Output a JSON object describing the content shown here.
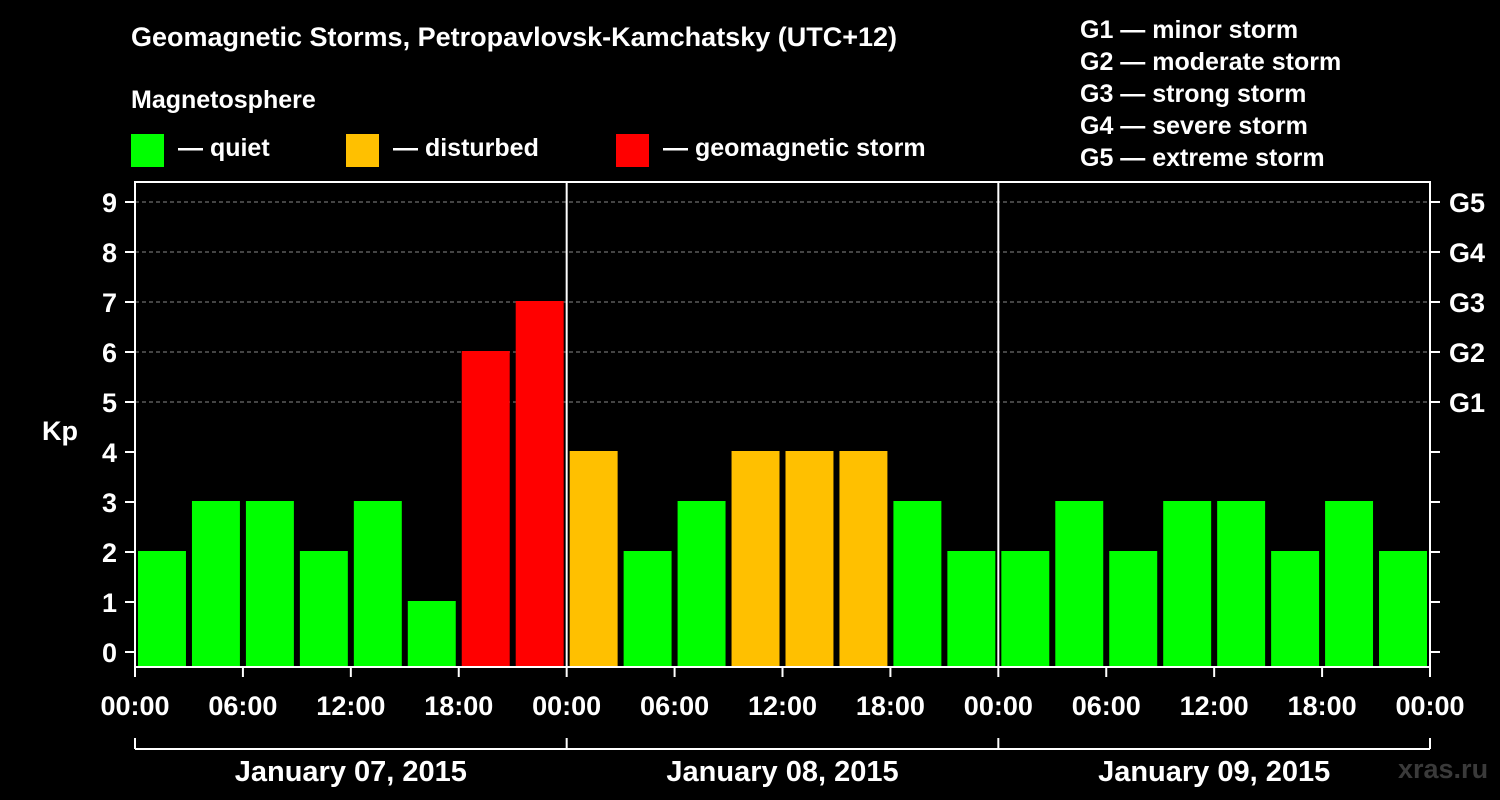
{
  "header": {
    "title": "Geomagnetic Storms, Petropavlovsk-Kamchatsky (UTC+12)",
    "subtitle": "Magnetosphere"
  },
  "legend": [
    {
      "label": "— quiet",
      "color": "#00ff00"
    },
    {
      "label": "— disturbed",
      "color": "#ffc000"
    },
    {
      "label": "— geomagnetic storm",
      "color": "#ff0000"
    }
  ],
  "g_scale": [
    "G1 — minor storm",
    "G2 — moderate storm",
    "G3 — strong storm",
    "G4 — severe storm",
    "G5 — extreme storm"
  ],
  "watermark": "xras.ru",
  "chart_data": {
    "type": "bar",
    "title": "Geomagnetic Storms, Petropavlovsk-Kamchatsky (UTC+12)",
    "ylabel": "Kp",
    "ylim": [
      0,
      9
    ],
    "yticks": [
      0,
      1,
      2,
      3,
      4,
      5,
      6,
      7,
      8,
      9
    ],
    "right_axis_labels": [
      {
        "kp": 5,
        "label": "G1"
      },
      {
        "kp": 6,
        "label": "G2"
      },
      {
        "kp": 7,
        "label": "G3"
      },
      {
        "kp": 8,
        "label": "G4"
      },
      {
        "kp": 9,
        "label": "G5"
      }
    ],
    "xticks": [
      "00:00",
      "06:00",
      "12:00",
      "18:00",
      "00:00",
      "06:00",
      "12:00",
      "18:00",
      "00:00",
      "06:00",
      "12:00",
      "18:00",
      "00:00"
    ],
    "days": [
      "January 07, 2015",
      "January 08, 2015",
      "January 09, 2015"
    ],
    "interval_hours": 3,
    "values": [
      2,
      3,
      3,
      2,
      3,
      1,
      6,
      7,
      4,
      2,
      3,
      4,
      4,
      4,
      3,
      2,
      2,
      3,
      2,
      3,
      3,
      2,
      3,
      2
    ],
    "levels": [
      "quiet",
      "quiet",
      "quiet",
      "quiet",
      "quiet",
      "quiet",
      "storm",
      "storm",
      "disturbed",
      "quiet",
      "quiet",
      "disturbed",
      "disturbed",
      "disturbed",
      "quiet",
      "quiet",
      "quiet",
      "quiet",
      "quiet",
      "quiet",
      "quiet",
      "quiet",
      "quiet",
      "quiet"
    ],
    "level_colors": {
      "quiet": "#00ff00",
      "disturbed": "#ffc000",
      "storm": "#ff0000"
    }
  }
}
